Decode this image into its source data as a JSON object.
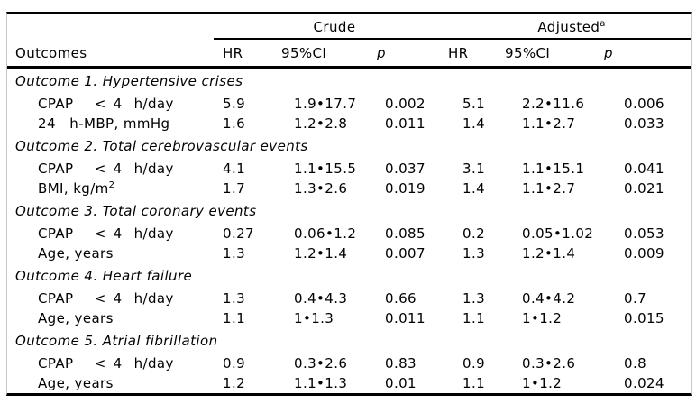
{
  "table": {
    "header": {
      "outcomes": "Outcomes",
      "crude": "Crude",
      "adjusted": "Adjusted",
      "adjusted_sup": "a",
      "hr1": "HR",
      "ci1": "95%CI",
      "p1": "p",
      "hr2": "HR",
      "ci2": "95%CI",
      "p2": "p"
    },
    "sections": [
      {
        "title": "Outcome 1. Hypertensive crises",
        "rows": [
          {
            "label": "CPAP  < 4  h/day",
            "label_sup": "",
            "values": [
              "5.9",
              "1.9•17.7",
              "0.002",
              "5.1",
              "2.2•11.6",
              "0.006"
            ]
          },
          {
            "label": "24 h-MBP, mmHg",
            "label_sup": "",
            "values": [
              "1.6",
              "1.2•2.8",
              "0.011",
              "1.4",
              "1.1•2.7",
              "0.033"
            ]
          }
        ]
      },
      {
        "title": "Outcome 2. Total cerebrovascular events",
        "rows": [
          {
            "label": "CPAP  < 4  h/day",
            "label_sup": "",
            "values": [
              "4.1",
              "1.1•15.5",
              "0.037",
              "3.1",
              "1.1•15.1",
              "0.041"
            ]
          },
          {
            "label": "BMI, kg/m",
            "label_sup": "2",
            "values": [
              "1.7",
              "1.3•2.6",
              "0.019",
              "1.4",
              "1.1•2.7",
              "0.021"
            ]
          }
        ]
      },
      {
        "title": "Outcome 3. Total coronary events",
        "rows": [
          {
            "label": "CPAP  < 4  h/day",
            "label_sup": "",
            "values": [
              "0.27",
              "0.06•1.2",
              "0.085",
              "0.2",
              "0.05•1.02",
              "0.053"
            ]
          },
          {
            "label": "Age, years",
            "label_sup": "",
            "values": [
              "1.3",
              "1.2•1.4",
              "0.007",
              "1.3",
              "1.2•1.4",
              "0.009"
            ]
          }
        ]
      },
      {
        "title": "Outcome 4. Heart failure",
        "rows": [
          {
            "label": "CPAP  < 4  h/day",
            "label_sup": "",
            "values": [
              "1.3",
              "0.4•4.3",
              "0.66",
              "1.3",
              "0.4•4.2",
              "0.7"
            ]
          },
          {
            "label": "Age, years",
            "label_sup": "",
            "values": [
              "1.1",
              "1•1.3",
              "0.011",
              "1.1",
              "1•1.2",
              "0.015"
            ]
          }
        ]
      },
      {
        "title": "Outcome 5. Atrial fibrillation",
        "rows": [
          {
            "label": "CPAP  < 4  h/day",
            "label_sup": "",
            "values": [
              "0.9",
              "0.3•2.6",
              "0.83",
              "0.9",
              "0.3•2.6",
              "0.8"
            ]
          },
          {
            "label": "Age, years",
            "label_sup": "",
            "values": [
              "1.2",
              "1.1•1.3",
              "0.01",
              "1.1",
              "1•1.2",
              "0.024"
            ]
          }
        ]
      }
    ]
  },
  "colors": {
    "rule": "#000000",
    "frame_border": "#c9c9c9",
    "text": "#000000",
    "background": "#ffffff"
  }
}
